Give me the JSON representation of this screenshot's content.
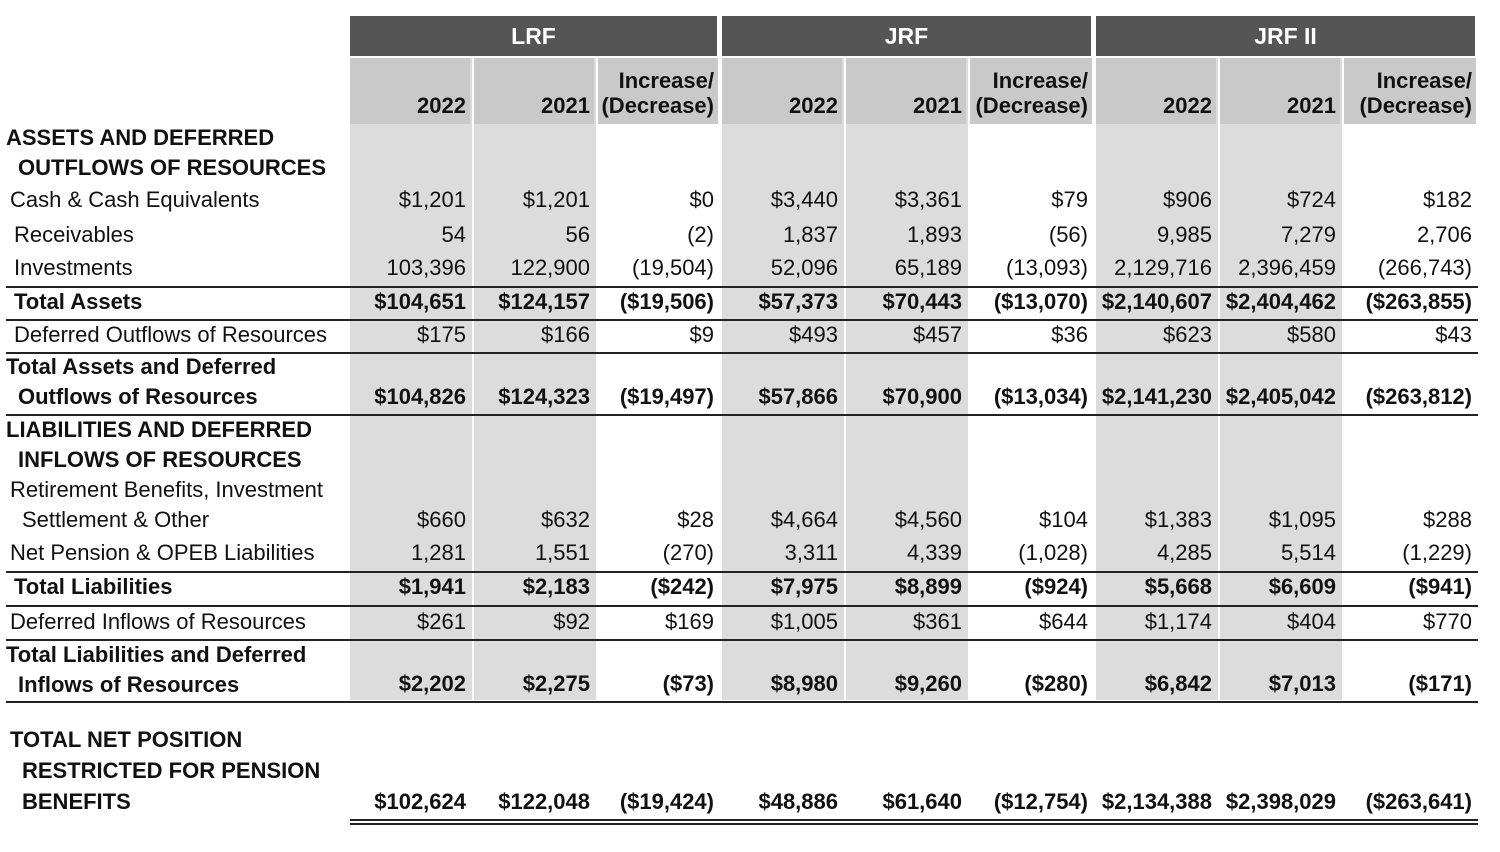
{
  "groups": [
    {
      "label": "LRF"
    },
    {
      "label": "JRF"
    },
    {
      "label": "JRF II"
    }
  ],
  "column_headers": [
    "2022",
    "2021",
    "Increase/\n(Decrease)",
    "2022",
    "2021",
    "Increase/\n(Decrease)",
    "2022",
    "2021",
    "Increase/\n(Decrease)"
  ],
  "rows": [
    {
      "lines": [
        "ASSETS AND DEFERRED",
        "OUTFLOWS OF RESOURCES"
      ],
      "style": "section",
      "values": []
    },
    {
      "lines": [
        "Cash & Cash Equivalents"
      ],
      "style": "item",
      "values": [
        "$1,201",
        "$1,201",
        "$0",
        "$3,440",
        "$3,361",
        "$79",
        "$906",
        "$724",
        "$182"
      ]
    },
    {
      "lines": [
        "Receivables"
      ],
      "style": "item",
      "values": [
        "54",
        "56",
        "(2)",
        "1,837",
        "1,893",
        "(56)",
        "9,985",
        "7,279",
        "2,706"
      ]
    },
    {
      "lines": [
        "Investments"
      ],
      "style": "item",
      "values": [
        "103,396",
        "122,900",
        "(19,504)",
        "52,096",
        "65,189",
        "(13,093)",
        "2,129,716",
        "2,396,459",
        "(266,743)"
      ]
    },
    {
      "lines": [
        "Total Assets"
      ],
      "style": "total",
      "values": [
        "$104,651",
        "$124,157",
        "($19,506)",
        "$57,373",
        "$70,443",
        "($13,070)",
        "$2,140,607",
        "$2,404,462",
        "($263,855)"
      ]
    },
    {
      "lines": [
        "Deferred Outflows of Resources"
      ],
      "style": "item",
      "values": [
        "$175",
        "$166",
        "$9",
        "$493",
        "$457",
        "$36",
        "$623",
        "$580",
        "$43"
      ]
    },
    {
      "lines": [
        "Total Assets and Deferred",
        "Outflows of Resources"
      ],
      "style": "total2",
      "values": [
        "$104,826",
        "$124,323",
        "($19,497)",
        "$57,866",
        "$70,900",
        "($13,034)",
        "$2,141,230",
        "$2,405,042",
        "($263,812)"
      ]
    },
    {
      "lines": [
        "LIABILITIES AND DEFERRED",
        "INFLOWS OF RESOURCES"
      ],
      "style": "section",
      "values": []
    },
    {
      "lines": [
        "Retirement Benefits, Investment",
        "Settlement & Other"
      ],
      "style": "item2",
      "values": [
        "$660",
        "$632",
        "$28",
        "$4,664",
        "$4,560",
        "$104",
        "$1,383",
        "$1,095",
        "$288"
      ]
    },
    {
      "lines": [
        "Net Pension & OPEB Liabilities"
      ],
      "style": "item",
      "values": [
        "1,281",
        "1,551",
        "(270)",
        "3,311",
        "4,339",
        "(1,028)",
        "4,285",
        "5,514",
        "(1,229)"
      ]
    },
    {
      "lines": [
        "Total Liabilities"
      ],
      "style": "total",
      "values": [
        "$1,941",
        "$2,183",
        "($242)",
        "$7,975",
        "$8,899",
        "($924)",
        "$5,668",
        "$6,609",
        "($941)"
      ]
    },
    {
      "lines": [
        "Deferred Inflows of Resources"
      ],
      "style": "item",
      "values": [
        "$261",
        "$92",
        "$169",
        "$1,005",
        "$361",
        "$644",
        "$1,174",
        "$404",
        "$770"
      ]
    },
    {
      "lines": [
        "Total Liabilities and Deferred",
        "Inflows of Resources"
      ],
      "style": "total2",
      "values": [
        "$2,202",
        "$2,275",
        "($73)",
        "$8,980",
        "$9,260",
        "($280)",
        "$6,842",
        "$7,013",
        "($171)"
      ]
    },
    {
      "lines": [
        "TOTAL NET POSITION",
        "RESTRICTED FOR PENSION",
        "BENEFITS"
      ],
      "style": "grand",
      "values": [
        "$102,624",
        "$122,048",
        "($19,424)",
        "$48,886",
        "$61,640",
        "($12,754)",
        "$2,134,388",
        "$2,398,029",
        "($263,641)"
      ]
    }
  ]
}
